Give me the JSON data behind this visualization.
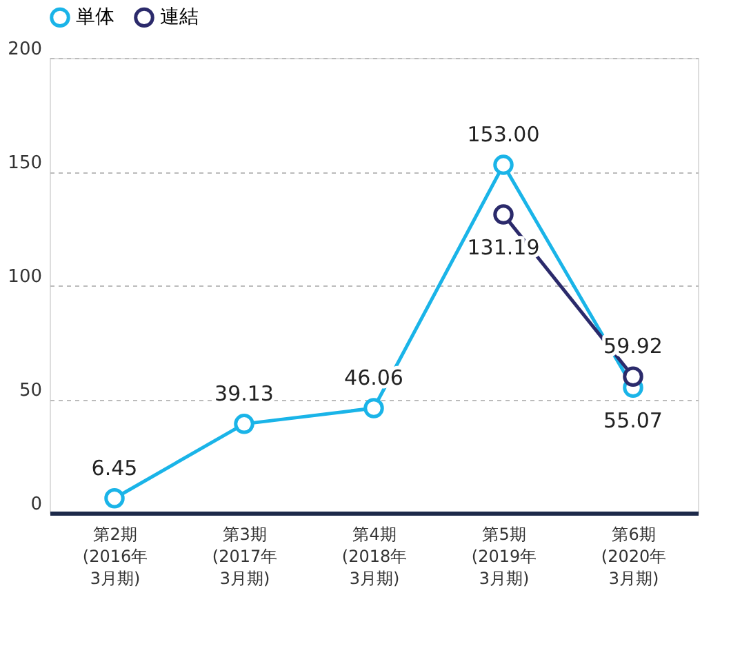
{
  "chart_data": {
    "type": "line",
    "categories": [
      "第2期\n(2016年\n3月期)",
      "第3期\n(2017年\n3月期)",
      "第4期\n(2018年\n3月期)",
      "第5期\n(2019年\n3月期)",
      "第6期\n(2020年\n3月期)"
    ],
    "series": [
      {
        "name": "単体",
        "color": "#1ab4e8",
        "values": [
          6.45,
          39.13,
          46.06,
          153.0,
          55.07
        ],
        "value_labels": [
          "6.45",
          "39.13",
          "46.06",
          "153.00",
          "55.07"
        ]
      },
      {
        "name": "連結",
        "color": "#2b2a6b",
        "values": [
          null,
          null,
          null,
          131.19,
          59.92
        ],
        "value_labels": [
          null,
          null,
          null,
          "131.19",
          "59.92"
        ]
      }
    ],
    "ylim": [
      0,
      200
    ],
    "yticks": [
      0,
      50,
      100,
      150,
      200
    ],
    "grid": "y",
    "legend": "top left",
    "marker": "circle",
    "line_style": "solid"
  }
}
